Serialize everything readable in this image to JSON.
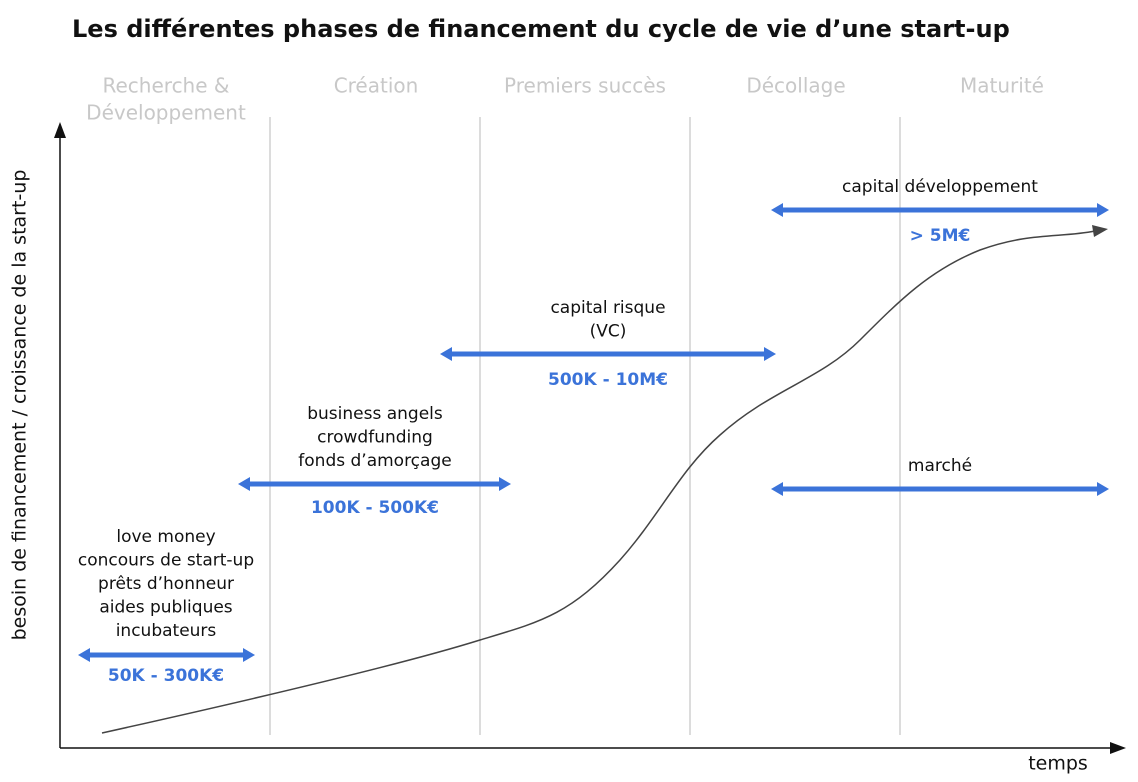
{
  "title": "Les différentes phases de financement du cycle de vie d’une start-up",
  "phases": [
    {
      "lines": [
        "Recherche &",
        "Développement"
      ]
    },
    {
      "lines": [
        "Création"
      ]
    },
    {
      "lines": [
        "Premiers succès"
      ]
    },
    {
      "lines": [
        "Décollage"
      ]
    },
    {
      "lines": [
        "Maturité"
      ]
    }
  ],
  "y_axis_label": "besoin de financement / croissance de la start-up",
  "x_axis_label": "temps",
  "stages": [
    {
      "lines": [
        "love money",
        "concours de start-up",
        "prêts d’honneur",
        "aides publiques",
        "incubateurs"
      ],
      "amount": "50K - 300K€"
    },
    {
      "lines": [
        "business angels",
        "crowdfunding",
        "fonds d’amorçage"
      ],
      "amount": "100K - 500K€"
    },
    {
      "lines": [
        "capital risque",
        "(VC)"
      ],
      "amount": "500K - 10M€"
    },
    {
      "lines": [
        "capital développement"
      ],
      "amount": "> 5M€"
    }
  ],
  "market": {
    "label": "marché"
  }
}
